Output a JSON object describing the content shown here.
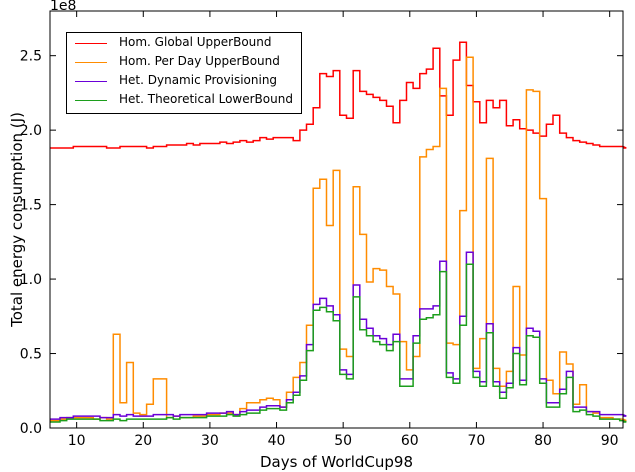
{
  "chart_data": {
    "type": "line",
    "step": true,
    "xlabel": "Days of WorldCup98",
    "ylabel": "Total energy consumption (J)",
    "y_multiplier": "1e8",
    "xlim": [
      6,
      92
    ],
    "ylim": [
      0,
      2.8
    ],
    "x_ticks": [
      10,
      20,
      30,
      40,
      50,
      60,
      70,
      80,
      90
    ],
    "y_ticks": [
      0.0,
      0.5,
      1.0,
      1.5,
      2.0,
      2.5
    ],
    "y_tick_labels": [
      "0.0",
      "0.5",
      "1.0",
      "1.5",
      "2.0",
      "2.5"
    ],
    "x_start": 6,
    "x_step": 1,
    "legend_position": "top-left",
    "grid": false,
    "series": [
      {
        "name": "Hom. Global UpperBound",
        "color": "#ff0000",
        "values": [
          1.88,
          1.88,
          1.88,
          1.88,
          1.89,
          1.89,
          1.89,
          1.89,
          1.89,
          1.88,
          1.88,
          1.89,
          1.89,
          1.89,
          1.89,
          1.88,
          1.89,
          1.89,
          1.9,
          1.9,
          1.9,
          1.91,
          1.9,
          1.91,
          1.91,
          1.91,
          1.92,
          1.91,
          1.92,
          1.93,
          1.92,
          1.93,
          1.95,
          1.94,
          1.95,
          1.95,
          1.95,
          1.93,
          2.0,
          2.04,
          2.15,
          2.38,
          2.36,
          2.4,
          2.1,
          2.08,
          2.4,
          2.26,
          2.24,
          2.22,
          2.2,
          2.16,
          2.05,
          2.2,
          2.32,
          2.28,
          2.38,
          2.41,
          2.55,
          2.23,
          2.1,
          2.47,
          2.59,
          2.3,
          2.19,
          2.05,
          2.2,
          2.15,
          2.2,
          2.03,
          2.07,
          2.01,
          2.0,
          1.98,
          1.96,
          2.04,
          2.1,
          1.98,
          1.95,
          1.93,
          1.92,
          1.91,
          1.9,
          1.89,
          1.89,
          1.89,
          1.89,
          1.88
        ]
      },
      {
        "name": "Hom. Per Day UpperBound",
        "color": "#ff8c00",
        "values": [
          0.05,
          0.05,
          0.06,
          0.07,
          0.07,
          0.07,
          0.07,
          0.06,
          0.07,
          0.06,
          0.63,
          0.17,
          0.44,
          0.1,
          0.09,
          0.16,
          0.33,
          0.33,
          0.07,
          0.08,
          0.07,
          0.07,
          0.08,
          0.08,
          0.09,
          0.09,
          0.1,
          0.1,
          0.09,
          0.13,
          0.17,
          0.17,
          0.19,
          0.2,
          0.19,
          0.14,
          0.24,
          0.34,
          0.44,
          0.69,
          1.61,
          1.67,
          1.36,
          1.73,
          0.53,
          0.48,
          1.62,
          1.3,
          0.98,
          1.07,
          1.06,
          0.95,
          0.9,
          0.58,
          0.39,
          0.48,
          1.82,
          1.87,
          1.89,
          2.28,
          0.57,
          0.56,
          1.46,
          2.49,
          0.4,
          0.6,
          1.81,
          0.4,
          0.28,
          0.38,
          0.95,
          0.49,
          2.27,
          2.26,
          1.54,
          0.32,
          0.23,
          0.51,
          0.43,
          0.16,
          0.29,
          0.11,
          0.1,
          0.07,
          0.07,
          0.06,
          0.06,
          0.05
        ]
      },
      {
        "name": "Het. Dynamic Provisioning",
        "color": "#6a00d8",
        "values": [
          0.06,
          0.06,
          0.07,
          0.07,
          0.08,
          0.08,
          0.08,
          0.08,
          0.07,
          0.07,
          0.09,
          0.08,
          0.09,
          0.08,
          0.08,
          0.08,
          0.09,
          0.09,
          0.09,
          0.08,
          0.09,
          0.09,
          0.09,
          0.09,
          0.1,
          0.1,
          0.1,
          0.11,
          0.09,
          0.11,
          0.12,
          0.12,
          0.14,
          0.15,
          0.15,
          0.14,
          0.19,
          0.24,
          0.35,
          0.56,
          0.83,
          0.87,
          0.82,
          0.76,
          0.39,
          0.36,
          0.96,
          0.73,
          0.67,
          0.62,
          0.6,
          0.56,
          0.63,
          0.33,
          0.33,
          0.62,
          0.8,
          0.8,
          0.82,
          1.12,
          0.37,
          0.33,
          0.75,
          1.18,
          0.38,
          0.31,
          0.7,
          0.31,
          0.24,
          0.3,
          0.54,
          0.32,
          0.67,
          0.65,
          0.33,
          0.17,
          0.17,
          0.26,
          0.38,
          0.14,
          0.14,
          0.11,
          0.11,
          0.09,
          0.09,
          0.09,
          0.09,
          0.08
        ]
      },
      {
        "name": "Het. Theoretical LowerBound",
        "color": "#1c9e1c",
        "values": [
          0.04,
          0.04,
          0.05,
          0.06,
          0.06,
          0.06,
          0.06,
          0.06,
          0.05,
          0.05,
          0.06,
          0.05,
          0.06,
          0.06,
          0.06,
          0.06,
          0.06,
          0.06,
          0.07,
          0.06,
          0.07,
          0.07,
          0.07,
          0.07,
          0.08,
          0.08,
          0.08,
          0.09,
          0.08,
          0.09,
          0.1,
          0.1,
          0.12,
          0.13,
          0.13,
          0.12,
          0.17,
          0.22,
          0.32,
          0.52,
          0.79,
          0.81,
          0.78,
          0.72,
          0.36,
          0.33,
          0.88,
          0.66,
          0.62,
          0.58,
          0.56,
          0.52,
          0.58,
          0.28,
          0.28,
          0.57,
          0.73,
          0.74,
          0.76,
          1.05,
          0.34,
          0.3,
          0.69,
          1.1,
          0.34,
          0.28,
          0.64,
          0.28,
          0.2,
          0.27,
          0.5,
          0.29,
          0.62,
          0.61,
          0.3,
          0.14,
          0.14,
          0.23,
          0.34,
          0.11,
          0.12,
          0.09,
          0.08,
          0.06,
          0.06,
          0.06,
          0.05,
          0.04
        ]
      }
    ]
  }
}
